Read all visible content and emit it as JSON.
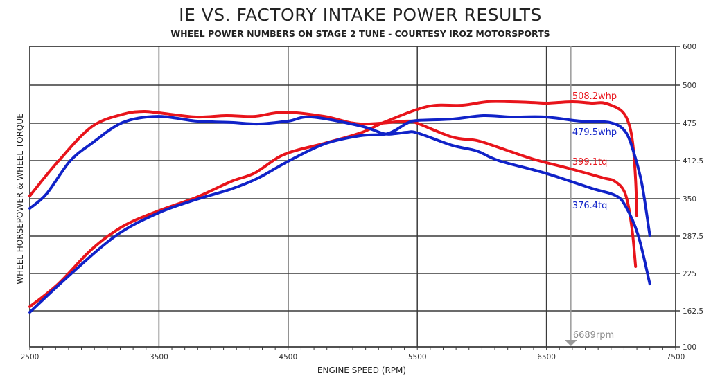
{
  "chart_data": {
    "type": "line",
    "title": "IE VS. FACTORY INTAKE POWER RESULTS",
    "subtitle": "WHEEL POWER NUMBERS ON STAGE 2 TUNE - COURTESY IROZ MOTORSPORTS",
    "xlabel": "ENGINE SPEED (RPM)",
    "ylabel": "WHEEL HORSEPOWER & WHEEL TORQUE",
    "xlim": [
      2500,
      7500
    ],
    "x_ticks": [
      2500,
      3500,
      4500,
      5500,
      6500,
      7500
    ],
    "x_tick_labels": [
      "2500",
      "3500",
      "4500",
      "5500",
      "6500",
      "7500"
    ],
    "y_ticks": [
      600,
      500,
      475,
      412.5,
      350,
      287.5,
      225,
      162.5,
      100
    ],
    "y_tick_labels": [
      "600",
      "500",
      "475",
      "412.5",
      "350",
      "287.5",
      "225",
      "162.5",
      "100"
    ],
    "y_axis_side": "right",
    "grid": true,
    "colors": {
      "ie": "#e8141b",
      "factory": "#1022c8",
      "cursor": "#9a9a9a",
      "grid": "#3a3a3a"
    },
    "series": [
      {
        "key": "ie_torque",
        "color": "#e8141b",
        "x": [
          2500,
          2720,
          2980,
          3220,
          3380,
          3500,
          3790,
          4020,
          4240,
          4470,
          4780,
          5060,
          5420,
          5500,
          5770,
          5960,
          6130,
          6400,
          6670,
          6940,
          7030,
          7110,
          7160,
          7190
        ],
        "y": [
          354.6,
          411.4,
          469.2,
          480.9,
          482.7,
          481.8,
          479.1,
          480.0,
          479.5,
          482.3,
          479.5,
          473.8,
          476.4,
          475.0,
          451.9,
          446.1,
          434.5,
          414.8,
          400.0,
          384.1,
          378.4,
          358.0,
          303.1,
          236.6
        ]
      },
      {
        "key": "ie_hp",
        "color": "#e8141b",
        "x": [
          2500,
          2720,
          2980,
          3220,
          3490,
          3790,
          4060,
          4240,
          4470,
          4780,
          5060,
          5240,
          5500,
          5650,
          5850,
          6040,
          6220,
          6400,
          6510,
          6700,
          6850,
          6950,
          7080,
          7140,
          7170,
          7190,
          7200
        ],
        "y": [
          169.4,
          207.6,
          265.5,
          303.7,
          329.2,
          352.3,
          378.4,
          392.0,
          422.9,
          441.4,
          458.8,
          475.5,
          484.1,
          486.8,
          486.8,
          489.1,
          489.1,
          488.6,
          488.2,
          489.1,
          488.2,
          488.2,
          483.2,
          472.7,
          437.6,
          380.7,
          321.1
        ]
      },
      {
        "key": "factory_torque",
        "color": "#1022c8",
        "x": [
          2500,
          2630,
          2810,
          2980,
          3220,
          3490,
          3790,
          4060,
          4270,
          4500,
          4680,
          5060,
          5240,
          5330,
          5420,
          5500,
          5770,
          5960,
          6130,
          6490,
          6850,
          7030,
          7110,
          7210,
          7300
        ],
        "y": [
          333.8,
          358.0,
          411.4,
          441.4,
          475.5,
          479.5,
          476.4,
          475.5,
          473.8,
          476.4,
          479.1,
          470.4,
          457.6,
          457.6,
          459.9,
          458.8,
          438.0,
          428.7,
          412.5,
          392.0,
          367.0,
          355.7,
          338.4,
          288.7,
          207.6
        ]
      },
      {
        "key": "factory_hp",
        "color": "#1022c8",
        "x": [
          2500,
          2810,
          3170,
          3490,
          3790,
          4060,
          4270,
          4500,
          4780,
          5060,
          5270,
          5420,
          5500,
          5770,
          6010,
          6220,
          6490,
          6760,
          6990,
          7110,
          7180,
          7240,
          7300
        ],
        "y": [
          160.1,
          222.7,
          288.7,
          325.7,
          348.8,
          365.9,
          384.1,
          411.4,
          440.3,
          454.2,
          457.6,
          475.0,
          476.8,
          477.7,
          480.0,
          479.1,
          479.1,
          476.4,
          475.5,
          461.1,
          423.1,
          372.7,
          288.7
        ]
      }
    ],
    "annotations": [
      {
        "text": "508.2whp",
        "color": "#e8141b"
      },
      {
        "text": "479.5whp",
        "color": "#1022c8"
      },
      {
        "text": "399.1tq",
        "color": "#e8141b"
      },
      {
        "text": "376.4tq",
        "color": "#1022c8"
      }
    ],
    "cursor": {
      "rpm": 6689,
      "label": "6689rpm"
    }
  }
}
